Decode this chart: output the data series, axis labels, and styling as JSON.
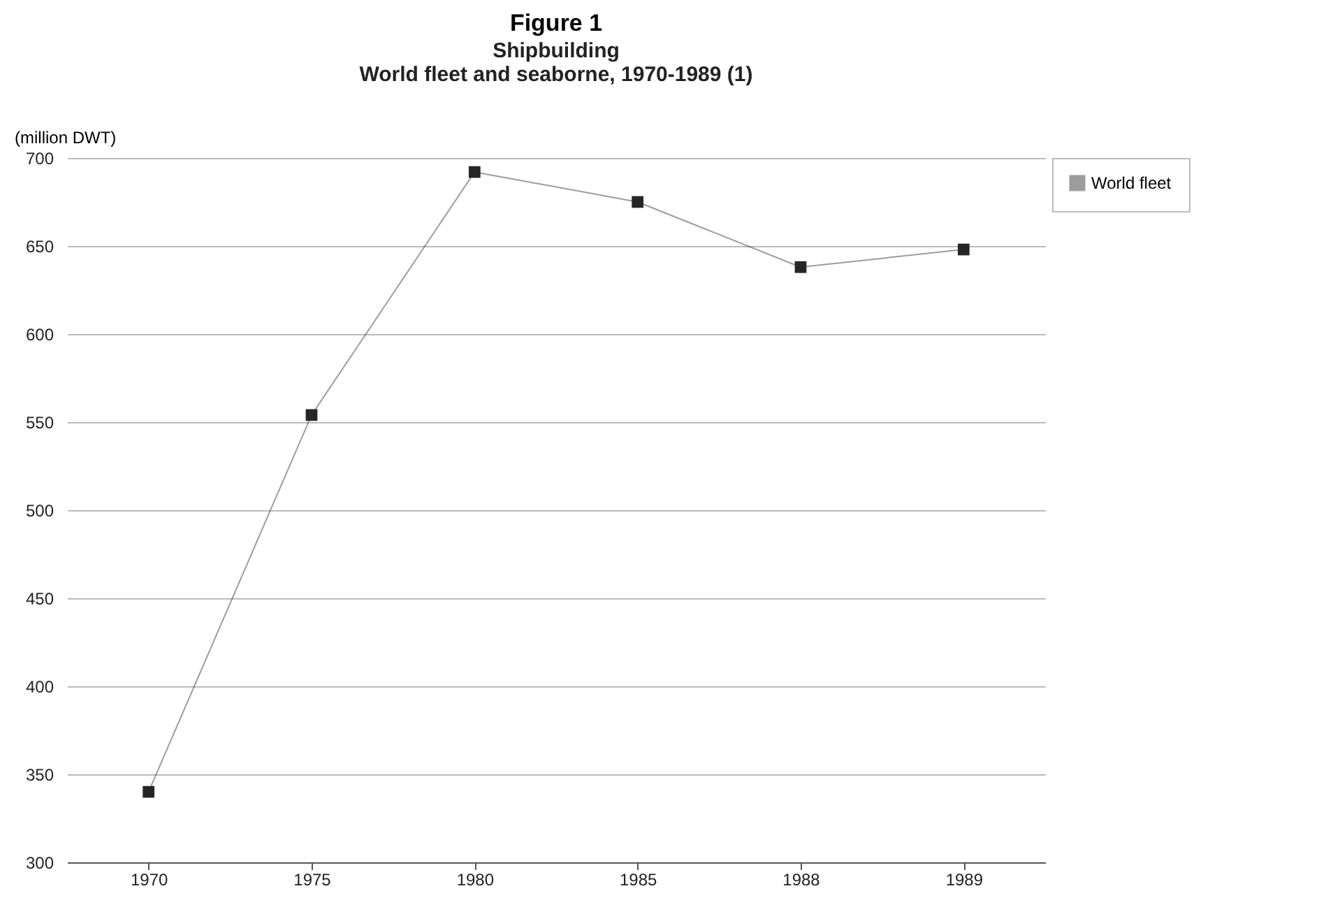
{
  "chart_data": {
    "type": "line",
    "title": "Figure 1",
    "subtitle": "Shipbuilding\nWorld fleet and seaborne, 1970-1989 (1)",
    "ylabel": "(million DWT)",
    "categories": [
      "1970",
      "1975",
      "1980",
      "1985",
      "1988",
      "1989"
    ],
    "series": [
      {
        "name": "World fleet",
        "color": "#262626",
        "values": [
          340,
          554,
          692,
          675,
          638,
          648
        ]
      }
    ],
    "ylim": [
      300,
      700
    ],
    "yticks": [
      300,
      350,
      400,
      450,
      500,
      550,
      600,
      650,
      700
    ],
    "grid": "y",
    "legend": "top right",
    "marker": "square",
    "line_style": "solid"
  }
}
